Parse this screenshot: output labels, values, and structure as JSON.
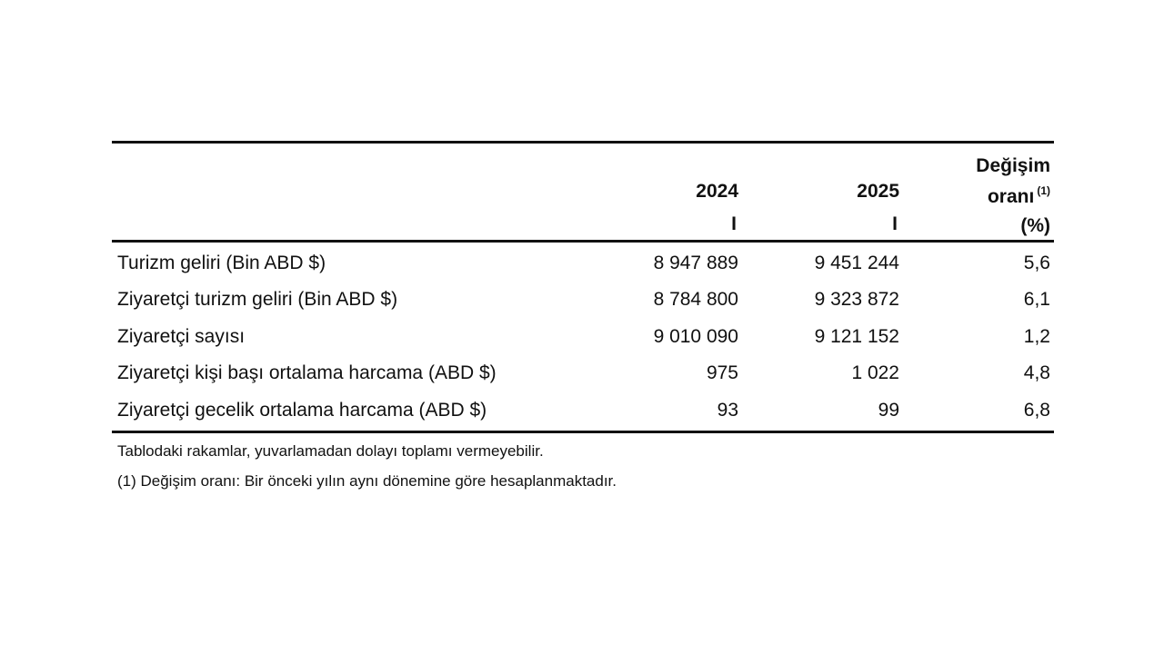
{
  "table": {
    "header": {
      "col_2024_year": "2024",
      "col_2024_period": "I",
      "col_2025_year": "2025",
      "col_2025_period": "I",
      "change_line1": "Değişim",
      "change_line2": "oranı",
      "change_superscript": "(1)",
      "change_line3": "(%)"
    },
    "rows": [
      {
        "label": "Turizm geliri (Bin ABD $)",
        "v2024": "8 947 889",
        "v2025": "9 451 244",
        "change": "5,6"
      },
      {
        "label": "Ziyaretçi turizm geliri (Bin ABD $)",
        "v2024": "8 784 800",
        "v2025": "9 323 872",
        "change": "6,1"
      },
      {
        "label": "Ziyaretçi sayısı",
        "v2024": "9 010 090",
        "v2025": "9 121 152",
        "change": "1,2"
      },
      {
        "label": "Ziyaretçi kişi başı ortalama harcama (ABD $)",
        "v2024": "975",
        "v2025": "1 022",
        "change": "4,8"
      },
      {
        "label": "Ziyaretçi gecelik ortalama harcama (ABD $)",
        "v2024": "93",
        "v2025": "99",
        "change": "6,8"
      }
    ]
  },
  "notes": [
    "Tablodaki rakamlar, yuvarlamadan dolayı toplamı vermeyebilir.",
    "(1) Değişim oranı: Bir önceki yılın aynı dönemine göre hesaplanmaktadır."
  ]
}
